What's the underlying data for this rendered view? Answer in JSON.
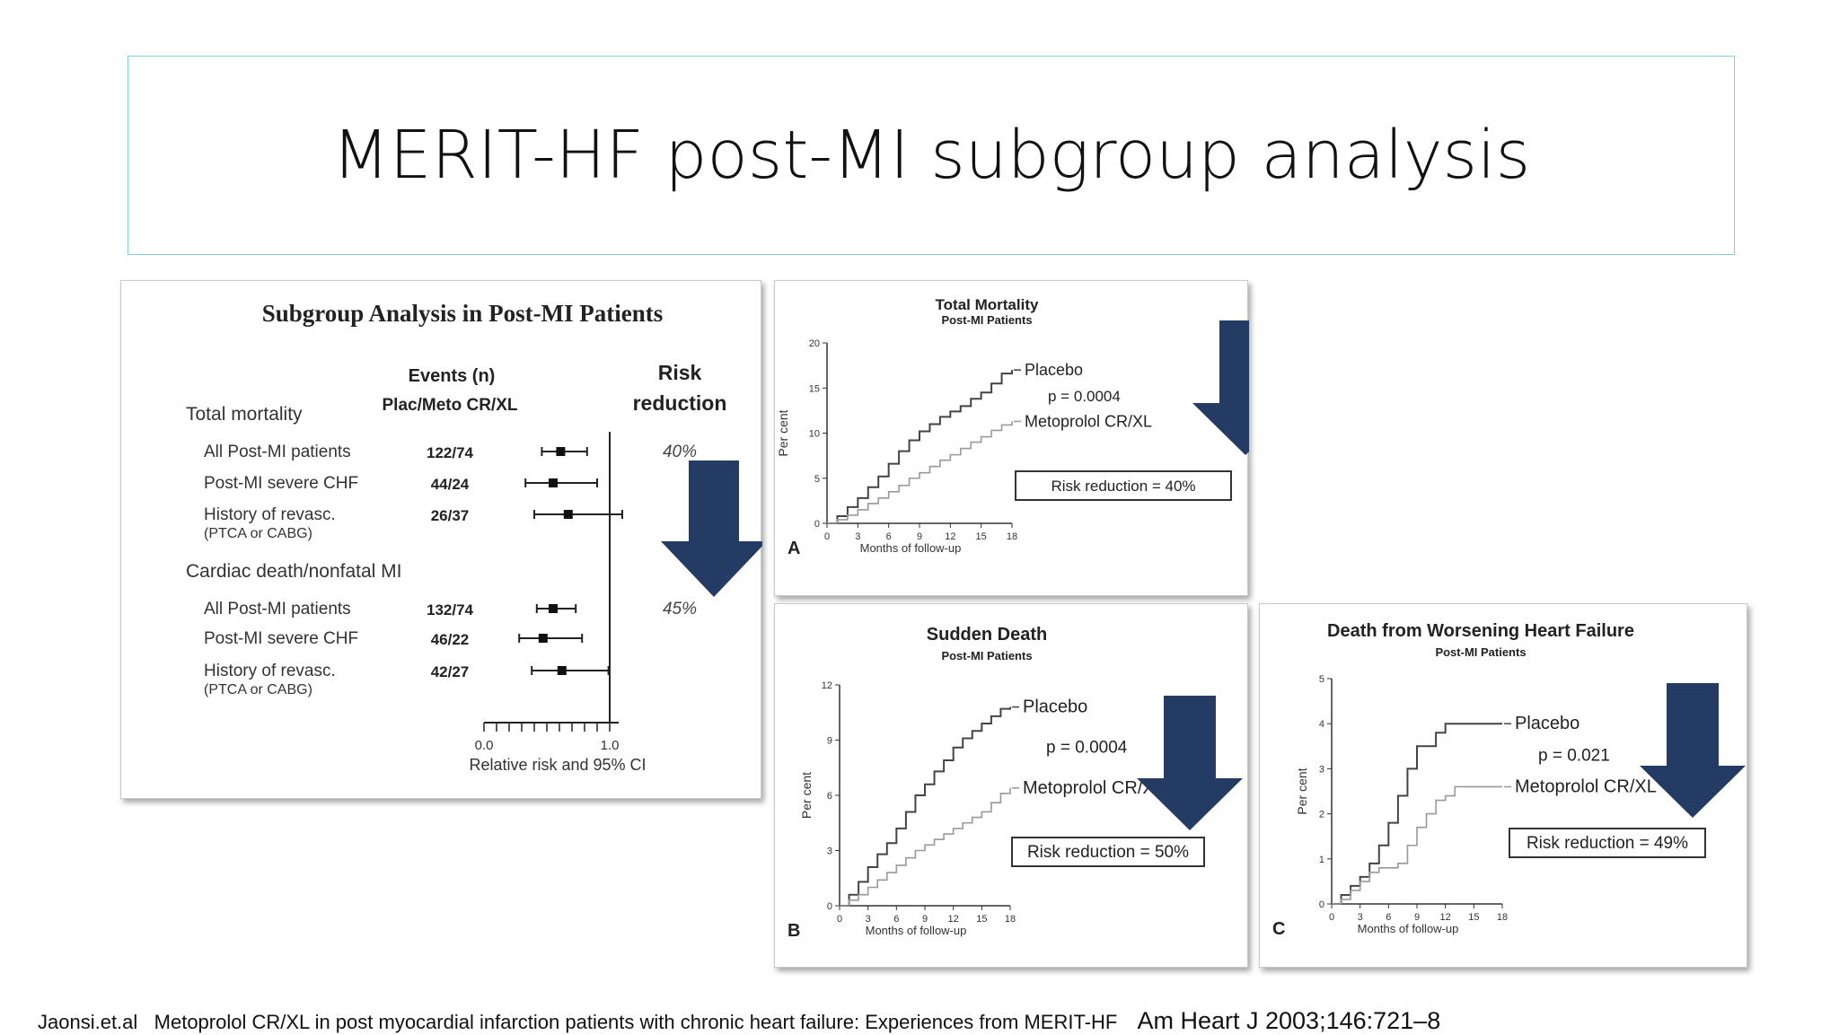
{
  "slide_title": "MERIT-HF post-MI subgroup analysis",
  "citation": {
    "authors": "Jaonsi.et.al",
    "article": "Metoprolol CR/XL in post myocardial infarction patients with chronic heart failure: Experiences from MERIT-HF",
    "journal": "Am Heart J 2003;146:721–8"
  },
  "colors": {
    "arrow": "#243b64",
    "title_border": "#7fd3dc",
    "line": "#555555",
    "light_line": "#9a9a9a"
  },
  "chart_data": [
    {
      "type": "forest",
      "title": "Subgroup Analysis in Post-MI Patients",
      "col_events": [
        "Events (n)",
        "Plac/Meto CR/XL"
      ],
      "col_risk": [
        "Risk",
        "reduction"
      ],
      "xlabel": "Relative risk and 95% CI",
      "xlim": [
        0.0,
        1.0
      ],
      "tick_labels": [
        "0.0",
        "1.0"
      ],
      "groups": [
        {
          "name": "Total mortality",
          "risk_reduction": "40%",
          "rows": [
            {
              "label": "All Post-MI patients",
              "sub": "",
              "events": "122/74",
              "rr": 0.61,
              "lo": 0.46,
              "hi": 0.82
            },
            {
              "label": "Post-MI severe CHF",
              "sub": "",
              "events": "44/24",
              "rr": 0.55,
              "lo": 0.33,
              "hi": 0.9
            },
            {
              "label": "History of revasc.",
              "sub": "(PTCA or CABG)",
              "events": "26/37",
              "rr": 0.67,
              "lo": 0.4,
              "hi": 1.1
            }
          ]
        },
        {
          "name": "Cardiac death/nonfatal MI",
          "risk_reduction": "45%",
          "rows": [
            {
              "label": "All Post-MI patients",
              "sub": "",
              "events": "132/74",
              "rr": 0.55,
              "lo": 0.42,
              "hi": 0.73
            },
            {
              "label": "Post-MI severe CHF",
              "sub": "",
              "events": "46/22",
              "rr": 0.47,
              "lo": 0.28,
              "hi": 0.78
            },
            {
              "label": "History of revasc.",
              "sub": "(PTCA or CABG)",
              "events": "42/27",
              "rr": 0.62,
              "lo": 0.38,
              "hi": 0.99
            }
          ]
        }
      ]
    },
    {
      "type": "line",
      "panel_letter": "A",
      "title": "Total Mortality",
      "subtitle": "Post-MI Patients",
      "xlabel": "Months of follow-up",
      "ylabel": "Per cent",
      "ylim": [
        0,
        20
      ],
      "yticks": [
        0,
        5,
        10,
        15,
        20
      ],
      "xticks": [
        0,
        3,
        6,
        9,
        12,
        15,
        18
      ],
      "p_value": "p = 0.0004",
      "risk_label": "Risk reduction = 40%",
      "series": [
        {
          "name": "Placebo",
          "x": [
            0,
            1,
            2,
            3,
            4,
            5,
            6,
            7,
            8,
            9,
            10,
            11,
            12,
            13,
            14,
            15,
            16,
            17,
            18
          ],
          "y": [
            0,
            0.8,
            1.8,
            2.8,
            4.0,
            5.2,
            6.6,
            8.0,
            9.2,
            10.2,
            11.0,
            11.8,
            12.4,
            13.0,
            13.8,
            14.5,
            15.5,
            16.6,
            17.0
          ]
        },
        {
          "name": "Metoprolol CR/XL",
          "x": [
            0,
            1,
            2,
            3,
            4,
            5,
            6,
            7,
            8,
            9,
            10,
            11,
            12,
            13,
            14,
            15,
            16,
            17,
            18
          ],
          "y": [
            0,
            0.4,
            0.9,
            1.5,
            2.2,
            2.8,
            3.5,
            4.2,
            5.0,
            5.6,
            6.3,
            7.0,
            7.6,
            8.3,
            9.0,
            9.6,
            10.3,
            10.9,
            11.3
          ]
        }
      ]
    },
    {
      "type": "line",
      "panel_letter": "B",
      "title": "Sudden Death",
      "subtitle": "Post-MI Patients",
      "xlabel": "Months of follow-up",
      "ylabel": "Per cent",
      "ylim": [
        0,
        12
      ],
      "yticks": [
        0,
        3,
        6,
        9,
        12
      ],
      "xticks": [
        0,
        3,
        6,
        9,
        12,
        15,
        18
      ],
      "p_value": "p = 0.0004",
      "risk_label": "Risk reduction = 50%",
      "series": [
        {
          "name": "Placebo",
          "x": [
            0,
            1,
            2,
            3,
            4,
            5,
            6,
            7,
            8,
            9,
            10,
            11,
            12,
            13,
            14,
            15,
            16,
            17,
            18
          ],
          "y": [
            0,
            0.6,
            1.3,
            2.1,
            2.8,
            3.4,
            4.2,
            5.1,
            6.0,
            6.6,
            7.3,
            7.9,
            8.6,
            9.1,
            9.5,
            9.9,
            10.3,
            10.7,
            10.8
          ]
        },
        {
          "name": "Metoprolol CR/XL",
          "x": [
            0,
            1,
            2,
            3,
            4,
            5,
            6,
            7,
            8,
            9,
            10,
            11,
            12,
            13,
            14,
            15,
            16,
            17,
            18
          ],
          "y": [
            0,
            0.3,
            0.6,
            1.0,
            1.4,
            1.8,
            2.2,
            2.6,
            3.0,
            3.3,
            3.6,
            3.9,
            4.2,
            4.5,
            4.8,
            5.1,
            5.6,
            6.1,
            6.4
          ]
        }
      ]
    },
    {
      "type": "line",
      "panel_letter": "C",
      "title": "Death from Worsening Heart Failure",
      "subtitle": "Post-MI Patients",
      "xlabel": "Months of follow-up",
      "ylabel": "Per cent",
      "ylim": [
        0,
        5
      ],
      "yticks": [
        0,
        1,
        2,
        3,
        4,
        5
      ],
      "xticks": [
        0,
        3,
        6,
        9,
        12,
        15,
        18
      ],
      "p_value": "p = 0.021",
      "risk_label": "Risk reduction = 49%",
      "series": [
        {
          "name": "Placebo",
          "x": [
            0,
            1,
            2,
            3,
            4,
            5,
            6,
            7,
            8,
            9,
            10,
            11,
            12,
            13,
            14,
            15,
            16,
            17,
            18
          ],
          "y": [
            0,
            0.2,
            0.4,
            0.6,
            0.9,
            1.3,
            1.8,
            2.4,
            3.0,
            3.5,
            3.5,
            3.8,
            4.0,
            4.0,
            4.0,
            4.0,
            4.0,
            4.0,
            4.0
          ]
        },
        {
          "name": "Metoprolol CR/XL",
          "x": [
            0,
            1,
            2,
            3,
            4,
            5,
            6,
            7,
            8,
            9,
            10,
            11,
            12,
            13,
            14,
            15,
            16,
            17,
            18
          ],
          "y": [
            0,
            0.1,
            0.3,
            0.5,
            0.7,
            0.8,
            0.8,
            0.9,
            1.3,
            1.7,
            2.0,
            2.3,
            2.4,
            2.6,
            2.6,
            2.6,
            2.6,
            2.6,
            2.6
          ]
        }
      ]
    }
  ]
}
